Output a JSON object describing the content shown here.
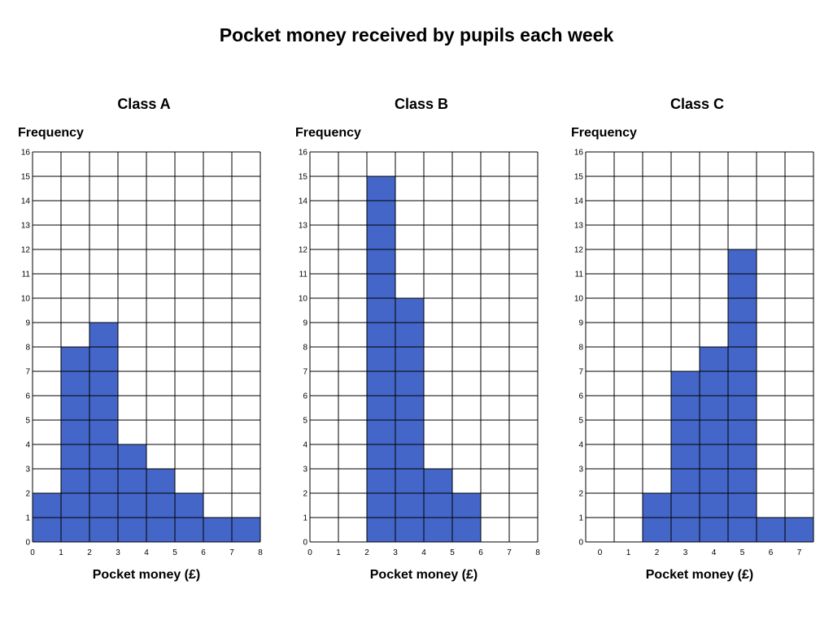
{
  "title": "Pocket money received by pupils each week",
  "colors": {
    "bar": "#4466c8",
    "grid": "#000000"
  },
  "chart_data": [
    {
      "type": "bar",
      "title": "Class A",
      "ylabel": "Frequency",
      "xlabel": "Pocket money (£)",
      "ylim": [
        0,
        16
      ],
      "yticks": [
        "0",
        "1",
        "2",
        "3",
        "4",
        "5",
        "6",
        "7",
        "8",
        "9",
        "10",
        "11",
        "12",
        "13",
        "14",
        "15",
        "16"
      ],
      "xticks": [
        "0",
        "1",
        "2",
        "3",
        "4",
        "5",
        "6",
        "7",
        "8"
      ],
      "xtick_position": "edge",
      "bins": [
        [
          0,
          1
        ],
        [
          1,
          2
        ],
        [
          2,
          3
        ],
        [
          3,
          4
        ],
        [
          4,
          5
        ],
        [
          5,
          6
        ],
        [
          6,
          7
        ],
        [
          7,
          8
        ]
      ],
      "values": [
        2,
        8,
        9,
        4,
        3,
        2,
        1,
        1
      ],
      "grid": true
    },
    {
      "type": "bar",
      "title": "Class B",
      "ylabel": "Frequency",
      "xlabel": "Pocket money (£)",
      "ylim": [
        0,
        16
      ],
      "yticks": [
        "0",
        "1",
        "2",
        "3",
        "4",
        "5",
        "6",
        "7",
        "8",
        "9",
        "10",
        "11",
        "12",
        "13",
        "14",
        "15",
        "16"
      ],
      "xticks": [
        "0",
        "1",
        "2",
        "3",
        "4",
        "5",
        "6",
        "7",
        "8"
      ],
      "xtick_position": "edge",
      "bins": [
        [
          0,
          1
        ],
        [
          1,
          2
        ],
        [
          2,
          3
        ],
        [
          3,
          4
        ],
        [
          4,
          5
        ],
        [
          5,
          6
        ],
        [
          6,
          7
        ],
        [
          7,
          8
        ]
      ],
      "values": [
        0,
        0,
        15,
        10,
        3,
        2,
        0,
        0
      ],
      "grid": true
    },
    {
      "type": "bar",
      "title": "Class C",
      "ylabel": "Frequency",
      "xlabel": "Pocket money (£)",
      "ylim": [
        0,
        16
      ],
      "yticks": [
        "0",
        "1",
        "2",
        "3",
        "4",
        "5",
        "6",
        "7",
        "8",
        "9",
        "10",
        "11",
        "12",
        "13",
        "14",
        "15",
        "16"
      ],
      "xticks": [
        "0",
        "1",
        "2",
        "3",
        "4",
        "5",
        "6",
        "7"
      ],
      "xtick_position": "center",
      "categories": [
        "0",
        "1",
        "2",
        "3",
        "4",
        "5",
        "6",
        "7"
      ],
      "values": [
        0,
        0,
        2,
        7,
        8,
        12,
        1,
        1
      ],
      "grid": true
    }
  ]
}
